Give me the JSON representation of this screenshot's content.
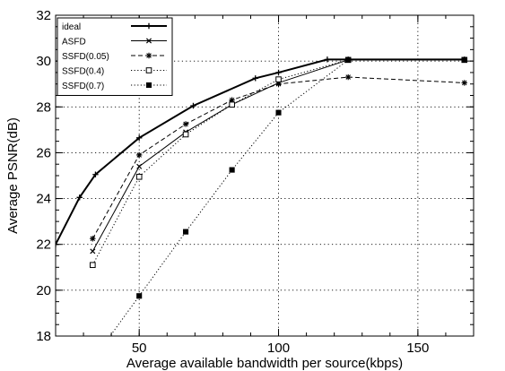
{
  "chart_data": {
    "type": "line",
    "title": "",
    "xlabel": "Average available bandwidth per source(kbps)",
    "ylabel": "Average PSNR(dB)",
    "xlim": [
      20,
      170
    ],
    "ylim": [
      18,
      32
    ],
    "xticks": [
      50,
      100,
      150
    ],
    "yticks": [
      18,
      20,
      22,
      24,
      26,
      28,
      30,
      32
    ],
    "grid": true,
    "legend_position": "top-left",
    "series": [
      {
        "name": "ideal",
        "line_style": "solid-thick",
        "marker": "plus",
        "x": [
          20,
          28.6,
          34.3,
          50,
          69.4,
          91.7,
          100,
          117.5,
          125,
          166.7
        ],
        "y": [
          22.0,
          24.05,
          25.05,
          26.65,
          28.05,
          29.25,
          29.5,
          30.07,
          30.07,
          30.07
        ]
      },
      {
        "name": "ASFD",
        "line_style": "solid",
        "marker": "x",
        "x": [
          33.3,
          50,
          66.7,
          83.3,
          100,
          125,
          166.7
        ],
        "y": [
          21.7,
          25.4,
          26.9,
          28.1,
          29.05,
          30.05,
          30.05
        ]
      },
      {
        "name": "SSFD(0.05)",
        "line_style": "dashed",
        "marker": "asterisk",
        "x": [
          33.3,
          50,
          66.7,
          83.3,
          100,
          125,
          166.7
        ],
        "y": [
          22.25,
          25.9,
          27.25,
          28.3,
          29.0,
          29.3,
          29.05
        ]
      },
      {
        "name": "SSFD(0.4)",
        "line_style": "dotted",
        "marker": "square",
        "x": [
          33.3,
          50,
          66.7,
          83.3,
          100,
          125,
          166.7
        ],
        "y": [
          21.1,
          24.95,
          26.8,
          28.1,
          29.2,
          30.05,
          30.05
        ]
      },
      {
        "name": "SSFD(0.7)",
        "line_style": "dotted",
        "marker": "filled-square",
        "x": [
          50,
          66.7,
          83.3,
          100,
          125,
          166.7
        ],
        "y": [
          19.75,
          22.55,
          25.25,
          27.75,
          30.05,
          30.05
        ]
      }
    ]
  }
}
